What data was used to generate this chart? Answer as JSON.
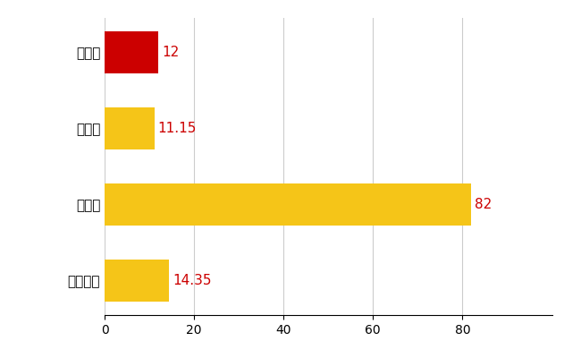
{
  "categories": [
    "東北町",
    "県平均",
    "県最大",
    "全国平均"
  ],
  "values": [
    12,
    11.15,
    82,
    14.35
  ],
  "bar_colors": [
    "#cc0000",
    "#f5c518",
    "#f5c518",
    "#f5c518"
  ],
  "value_labels": [
    "12",
    "11.15",
    "82",
    "14.35"
  ],
  "value_color": "#cc0000",
  "xlim": [
    0,
    100
  ],
  "xticks": [
    0,
    20,
    40,
    60,
    80
  ],
  "grid_color": "#cccccc",
  "background_color": "#ffffff",
  "bar_height": 0.55,
  "label_fontsize": 11,
  "tick_fontsize": 10
}
